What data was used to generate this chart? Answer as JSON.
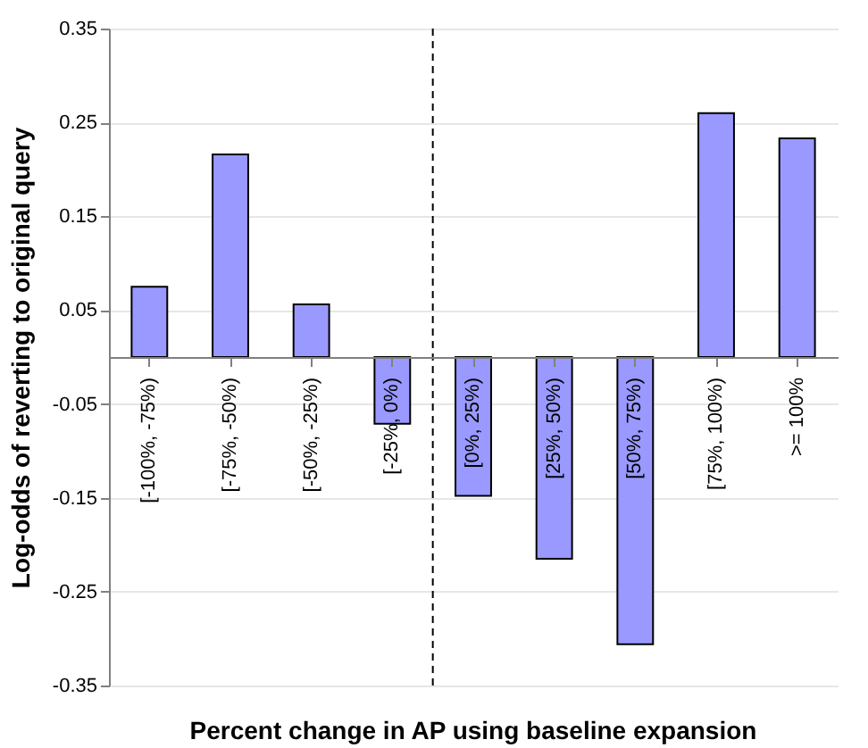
{
  "chart_data": {
    "type": "bar",
    "xlabel": "Percent change in AP using baseline expansion",
    "ylabel": "Log-odds of reverting to original query",
    "categories": [
      "[-100%, -75%)",
      "[-75%, -50%)",
      "[-50%, -25%)",
      "[-25%, 0%)",
      "[0%, 25%)",
      "[25%, 50%)",
      "[50%, 75%)",
      "[75%, 100%)",
      ">= 100%"
    ],
    "values": [
      0.075,
      0.216,
      0.056,
      -0.071,
      -0.148,
      -0.215,
      -0.306,
      0.26,
      0.233
    ],
    "color": "#9999ff",
    "ylim": [
      -0.35,
      0.35
    ],
    "yticks": [
      -0.35,
      -0.25,
      -0.15,
      -0.05,
      0.05,
      0.15,
      0.25,
      0.35
    ],
    "grid": "y",
    "ref_lines": [
      {
        "axis": "x",
        "value": "[0%, 25%)",
        "line_style": "dashed",
        "color": "#000000"
      }
    ]
  }
}
